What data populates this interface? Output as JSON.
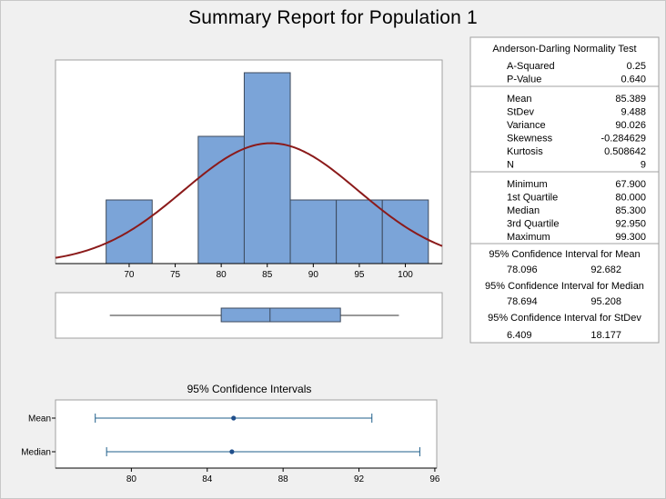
{
  "title": "Summary Report for Population 1",
  "stats": {
    "ad_header": "Anderson-Darling Normality Test",
    "ad_rows": [
      {
        "label": "A-Squared",
        "value": "0.25"
      },
      {
        "label": "P-Value",
        "value": "0.640"
      }
    ],
    "moment_rows": [
      {
        "label": "Mean",
        "value": "85.389"
      },
      {
        "label": "StDev",
        "value": "9.488"
      },
      {
        "label": "Variance",
        "value": "90.026"
      },
      {
        "label": "Skewness",
        "value": "-0.284629"
      },
      {
        "label": "Kurtosis",
        "value": "0.508642"
      },
      {
        "label": "N",
        "value": "9"
      }
    ],
    "quantile_rows": [
      {
        "label": "Minimum",
        "value": "67.900"
      },
      {
        "label": "1st Quartile",
        "value": "80.000"
      },
      {
        "label": "Median",
        "value": "85.300"
      },
      {
        "label": "3rd Quartile",
        "value": "92.950"
      },
      {
        "label": "Maximum",
        "value": "99.300"
      }
    ],
    "ci_blocks": [
      {
        "header": "95% Confidence Interval for Mean",
        "low": "78.096",
        "high": "92.682"
      },
      {
        "header": "95% Confidence Interval for Median",
        "low": "78.694",
        "high": "95.208"
      },
      {
        "header": "95% Confidence Interval for StDev",
        "low": "6.409",
        "high": "18.177"
      }
    ]
  },
  "colors": {
    "bar_fill": "#7ba4d8",
    "bar_stroke": "#3c4a5c",
    "curve": "#8b1a1a",
    "ci_line": "#1f5f8b",
    "ci_dot": "#1f4e8b"
  },
  "chart_data": [
    {
      "type": "histogram",
      "bin_edges": [
        67.5,
        72.5,
        77.5,
        82.5,
        87.5,
        92.5,
        97.5,
        102.5
      ],
      "counts": [
        1,
        0,
        2,
        3,
        1,
        1,
        1
      ],
      "x_ticks": [
        70,
        75,
        80,
        85,
        90,
        95,
        100
      ],
      "xlim": [
        62,
        104
      ],
      "ylim": [
        0,
        3.2
      ],
      "normal_fit": {
        "mean": 85.389,
        "sd": 9.488,
        "n": 9,
        "bin_width": 5
      },
      "grid": false
    },
    {
      "type": "boxplot",
      "min": 67.9,
      "q1": 80.0,
      "median": 85.3,
      "q3": 92.95,
      "max": 99.3
    },
    {
      "type": "interval",
      "title": "95% Confidence Intervals",
      "categories": [
        "Mean",
        "Median"
      ],
      "points": [
        85.389,
        85.3
      ],
      "lows": [
        78.096,
        78.694
      ],
      "highs": [
        92.682,
        95.208
      ],
      "x_ticks": [
        80,
        84,
        88,
        92,
        96
      ],
      "xlim": [
        76,
        96.1
      ]
    }
  ]
}
